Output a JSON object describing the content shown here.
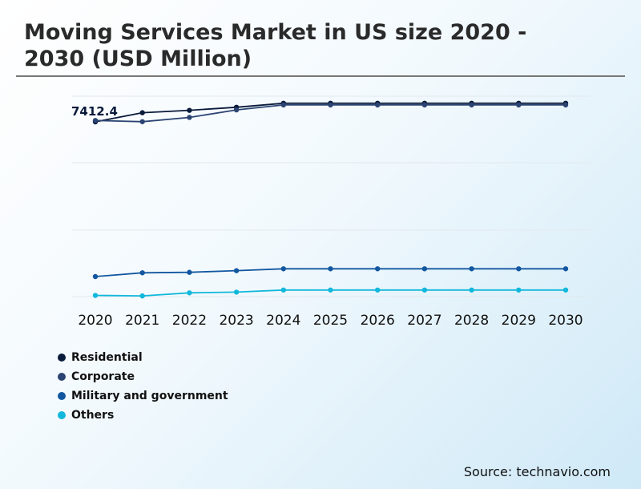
{
  "title": "Moving Services Market in US size 2020 - 2030 (USD Million)",
  "source": "Source: technavio.com",
  "chart_data": {
    "type": "line",
    "categories": [
      "2020",
      "2021",
      "2022",
      "2023",
      "2024",
      "2025",
      "2026",
      "2027",
      "2028",
      "2029",
      "2030"
    ],
    "annotation": "7412.4",
    "grid": true,
    "legend_position": "bottom-left",
    "ylim": [
      0,
      8500
    ],
    "series": [
      {
        "name": "Residential",
        "color": "#0a1a3a",
        "values": [
          7412.4,
          7800,
          7900,
          8030,
          8200,
          8200,
          8200,
          8200,
          8200,
          8200,
          8200
        ]
      },
      {
        "name": "Corporate",
        "color": "#2b4472",
        "values": [
          7470,
          7420,
          7600,
          7920,
          8130,
          8130,
          8130,
          8130,
          8130,
          8130,
          8130
        ]
      },
      {
        "name": "Military and government",
        "color": "#1257a0",
        "values": [
          850,
          1010,
          1030,
          1100,
          1180,
          1180,
          1180,
          1180,
          1180,
          1180,
          1180
        ]
      },
      {
        "name": "Others",
        "color": "#12b8db",
        "values": [
          50,
          30,
          160,
          190,
          280,
          280,
          280,
          280,
          280,
          280,
          280
        ]
      }
    ]
  }
}
